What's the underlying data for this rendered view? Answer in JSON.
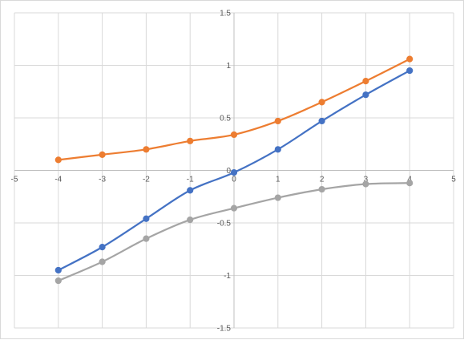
{
  "chart_data": {
    "type": "scatter",
    "title": "",
    "xlabel": "",
    "ylabel": "",
    "xlim": [
      -5,
      5
    ],
    "ylim": [
      -1.5,
      1.5
    ],
    "x_ticks": [
      -5,
      -4,
      -3,
      -2,
      -1,
      0,
      1,
      2,
      3,
      4,
      5
    ],
    "x_tick_labels": [
      "-5",
      "-4",
      "-3",
      "-2",
      "-1",
      "0",
      "1",
      "2",
      "3",
      "4",
      "5"
    ],
    "y_ticks": [
      1.5,
      1,
      0.5,
      0,
      -0.5,
      -1,
      -1.5
    ],
    "y_tick_labels": [
      "1.5",
      "1",
      "0.5",
      "0",
      "-0.5",
      "-1",
      "-1.5"
    ],
    "grid": true,
    "legend": "none",
    "line_style": "smoothed lines with markers",
    "series": [
      {
        "color": "#4472c4",
        "x": [
          -4,
          -3,
          -2,
          -1,
          0,
          1,
          2,
          3,
          4
        ],
        "values": [
          -0.95,
          -0.73,
          -0.46,
          -0.19,
          -0.02,
          0.2,
          0.47,
          0.72,
          0.95
        ]
      },
      {
        "color": "#ed7d31",
        "x": [
          -4,
          -3,
          -2,
          -1,
          0,
          1,
          2,
          3,
          4
        ],
        "values": [
          0.1,
          0.15,
          0.2,
          0.28,
          0.34,
          0.47,
          0.65,
          0.85,
          1.06
        ]
      },
      {
        "color": "#a5a5a5",
        "x": [
          -4,
          -3,
          -2,
          -1,
          0,
          1,
          2,
          3,
          4
        ],
        "values": [
          -1.05,
          -0.87,
          -0.65,
          -0.47,
          -0.36,
          -0.26,
          -0.18,
          -0.13,
          -0.12
        ]
      }
    ]
  }
}
